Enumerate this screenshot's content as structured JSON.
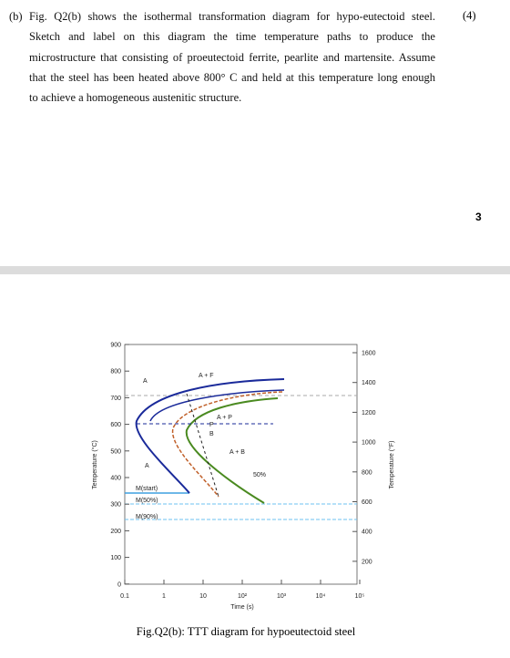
{
  "question": {
    "lines": [
      "(b) Fig. Q2(b) shows the isothermal transformation diagram for hypo-eutectoid steel.",
      "Sketch and label on this diagram the time temperature paths to produce the",
      "microstructure that consisting of proeutectoid ferrite, pearlite and martensite. Assume",
      "that the steel has been heated above 800° C and held at this temperature long enough",
      "to achieve a homogeneous austenitic structure."
    ],
    "marks": "(4)"
  },
  "page_number": "3",
  "figure": {
    "y_left_ticks": [
      "900",
      "800",
      "700",
      "600",
      "500",
      "400",
      "300",
      "200",
      "100",
      "0"
    ],
    "y_right_ticks": [
      "1600",
      "1400",
      "1200",
      "1000",
      "800",
      "600",
      "400",
      "200"
    ],
    "x_ticks": [
      "0.1",
      "1",
      "10",
      "10²",
      "10³",
      "10⁴",
      "10⁵"
    ],
    "y_left_label": "Temperature (°C)",
    "y_right_label": "Temperature (°F)",
    "x_label": "Time (s)",
    "region_labels": [
      "A + F",
      "A",
      "A + P",
      "P",
      "B",
      "A + B",
      "A",
      "50%",
      "M(start)",
      "M(50%)",
      "M(90%)"
    ],
    "caption": "Fig.Q2(b): TTT diagram for hypoeutectoid steel"
  }
}
